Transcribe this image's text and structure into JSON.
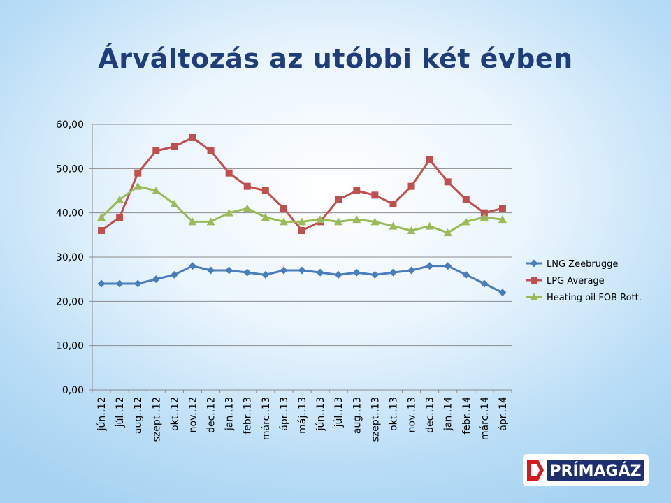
{
  "title": "Árváltozás az utóbbi két évben",
  "chart_data": {
    "type": "line",
    "title": "Árváltozás az utóbbi két évben",
    "categories": [
      "jún..12",
      "júl..12",
      "aug..12",
      "szept..12",
      "okt..12",
      "nov..12",
      "dec..12",
      "jan..13",
      "febr..13",
      "márc..13",
      "ápr..13",
      "máj..13",
      "jún..13",
      "júl..13",
      "aug..13",
      "szept..13",
      "okt..13",
      "nov..13",
      "dec..13",
      "jan..14",
      "febr..14",
      "márc..14",
      "ápr..14"
    ],
    "ylim": [
      0,
      60
    ],
    "yticks": [
      0,
      10,
      20,
      30,
      40,
      50,
      60
    ],
    "ytick_labels": [
      "0,00",
      "10,00",
      "20,00",
      "30,00",
      "40,00",
      "50,00",
      "60,00"
    ],
    "grid": true,
    "legend_position": "right",
    "series": [
      {
        "name": "LNG Zeebrugge",
        "color": "#4a7dbb",
        "marker": "diamond",
        "values": [
          24,
          24,
          24,
          25,
          26,
          28,
          27,
          27,
          26.5,
          26,
          27,
          27,
          26.5,
          26,
          26.5,
          26,
          26.5,
          27,
          28,
          28,
          26,
          24,
          22
        ]
      },
      {
        "name": "LPG Average",
        "color": "#c0504d",
        "marker": "square",
        "values": [
          36,
          39,
          49,
          54,
          55,
          57,
          54,
          49,
          46,
          45,
          41,
          36,
          38,
          43,
          45,
          44,
          42,
          46,
          52,
          47,
          43,
          40,
          41
        ]
      },
      {
        "name": "Heating oil FOB Rott.",
        "color": "#9bbb59",
        "marker": "triangle",
        "values": [
          39,
          43,
          46,
          45,
          42,
          38,
          38,
          40,
          41,
          39,
          38,
          38,
          38.5,
          38,
          38.5,
          38,
          37,
          36,
          37,
          35.5,
          38,
          39,
          38.5
        ]
      }
    ]
  },
  "logo": {
    "text": "PRÍMAGÁZ",
    "colors": {
      "red": "#d71920",
      "navy": "#1d2f6f"
    }
  }
}
